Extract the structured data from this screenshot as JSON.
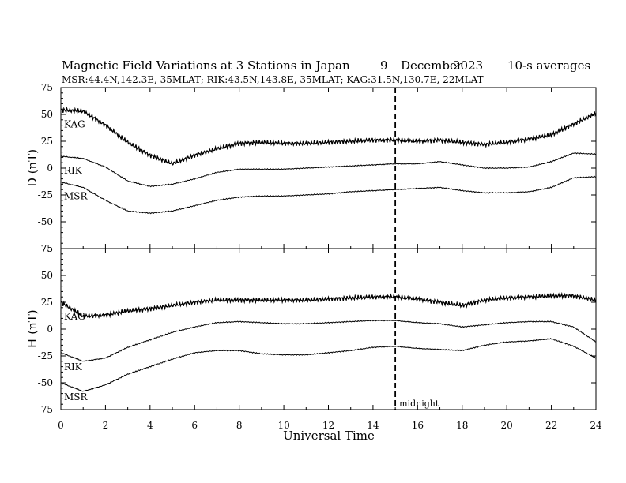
{
  "header": {
    "title": "Magnetic Field Variations at 3 Stations in Japan",
    "day": "9",
    "month": "December",
    "year": "2023",
    "averaging": "10-s averages",
    "subtitle": "MSR:44.4N,142.3E, 35MLAT;  RIK:43.5N,143.8E, 35MLAT;  KAG:31.5N,130.7E, 22MLAT"
  },
  "chart_data": [
    {
      "type": "line",
      "panel": "top",
      "ylabel": "D (nT)",
      "xlabel": "",
      "xlim": [
        0,
        24
      ],
      "ylim": [
        -75,
        75
      ],
      "xticks": [
        0,
        2,
        4,
        6,
        8,
        10,
        12,
        14,
        16,
        18,
        20,
        22,
        24
      ],
      "yticks": [
        -75,
        -50,
        -25,
        0,
        25,
        50,
        75
      ],
      "series": [
        {
          "name": "KAG",
          "x": [
            0,
            1,
            2,
            3,
            4,
            5,
            6,
            7,
            8,
            9,
            10,
            11,
            12,
            13,
            14,
            15,
            16,
            17,
            18,
            19,
            20,
            21,
            22,
            23,
            24
          ],
          "y": [
            54,
            53,
            40,
            24,
            12,
            4,
            12,
            18,
            23,
            24,
            23,
            23,
            24,
            25,
            26,
            26,
            25,
            26,
            24,
            22,
            24,
            27,
            31,
            41,
            51
          ]
        },
        {
          "name": "RIK",
          "x": [
            0,
            1,
            2,
            3,
            4,
            5,
            6,
            7,
            8,
            9,
            10,
            11,
            12,
            13,
            14,
            15,
            16,
            17,
            18,
            19,
            20,
            21,
            22,
            23,
            24
          ],
          "y": [
            11,
            9,
            1,
            -12,
            -17,
            -15,
            -10,
            -4,
            -1,
            -1,
            -1,
            0,
            1,
            2,
            3,
            4,
            4,
            6,
            3,
            0,
            0,
            1,
            6,
            14,
            13
          ]
        },
        {
          "name": "MSR",
          "x": [
            0,
            1,
            2,
            3,
            4,
            5,
            6,
            7,
            8,
            9,
            10,
            11,
            12,
            13,
            14,
            15,
            16,
            17,
            18,
            19,
            20,
            21,
            22,
            23,
            24
          ],
          "y": [
            -13,
            -18,
            -30,
            -40,
            -42,
            -40,
            -35,
            -30,
            -27,
            -26,
            -26,
            -25,
            -24,
            -22,
            -21,
            -20,
            -19,
            -18,
            -21,
            -23,
            -23,
            -22,
            -18,
            -9,
            -8
          ]
        }
      ]
    },
    {
      "type": "line",
      "panel": "bottom",
      "ylabel": "H (nT)",
      "xlabel": "Universal Time",
      "xlim": [
        0,
        24
      ],
      "ylim": [
        -75,
        75
      ],
      "xticks": [
        0,
        2,
        4,
        6,
        8,
        10,
        12,
        14,
        16,
        18,
        20,
        22,
        24
      ],
      "yticks": [
        -75,
        -50,
        -25,
        0,
        25,
        50,
        75
      ],
      "series": [
        {
          "name": "KAG",
          "x": [
            0,
            1,
            2,
            3,
            4,
            5,
            6,
            7,
            8,
            9,
            10,
            11,
            12,
            13,
            14,
            15,
            16,
            17,
            18,
            19,
            20,
            21,
            22,
            23,
            24
          ],
          "y": [
            25,
            12,
            13,
            17,
            19,
            22,
            25,
            27,
            27,
            27,
            27,
            27,
            28,
            29,
            30,
            30,
            28,
            25,
            22,
            27,
            29,
            30,
            31,
            31,
            27
          ]
        },
        {
          "name": "RIK",
          "x": [
            0,
            1,
            2,
            3,
            4,
            5,
            6,
            7,
            8,
            9,
            10,
            11,
            12,
            13,
            14,
            15,
            16,
            17,
            18,
            19,
            20,
            21,
            22,
            23,
            24
          ],
          "y": [
            -22,
            -30,
            -27,
            -17,
            -10,
            -3,
            2,
            6,
            7,
            6,
            5,
            5,
            6,
            7,
            8,
            8,
            6,
            5,
            2,
            4,
            6,
            7,
            7,
            2,
            -12
          ]
        },
        {
          "name": "MSR",
          "x": [
            0,
            1,
            2,
            3,
            4,
            5,
            6,
            7,
            8,
            9,
            10,
            11,
            12,
            13,
            14,
            15,
            16,
            17,
            18,
            19,
            20,
            21,
            22,
            23,
            24
          ],
          "y": [
            -50,
            -58,
            -52,
            -42,
            -35,
            -28,
            -22,
            -20,
            -20,
            -23,
            -24,
            -24,
            -22,
            -20,
            -17,
            -16,
            -18,
            -19,
            -20,
            -15,
            -12,
            -11,
            -9,
            -16,
            -27
          ]
        }
      ]
    }
  ],
  "annotation": {
    "midnight_ut": 15,
    "midnight_label": "midnight"
  }
}
